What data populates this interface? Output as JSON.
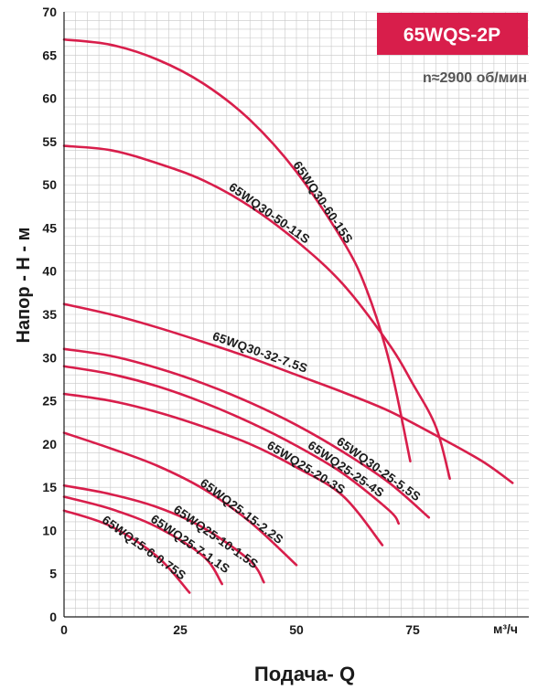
{
  "chart_data": {
    "type": "line",
    "title": "65WQS-2P",
    "subtitle": "n≈2900 об/мин",
    "xlabel": "Подача- Q",
    "xunit": "м³/ч",
    "ylabel": "Напор - Н - м",
    "xlim": [
      0,
      100
    ],
    "ylim": [
      0,
      70
    ],
    "x_ticks": [
      0,
      25,
      50,
      75
    ],
    "y_ticks": [
      0,
      5,
      10,
      15,
      20,
      25,
      30,
      35,
      40,
      45,
      50,
      55,
      60,
      65,
      70
    ],
    "grid": true,
    "colors": {
      "curve": "#d81e4b",
      "badge": "#d81e4b",
      "grid": "#c8c8c8"
    },
    "series": [
      {
        "name": "65WQ30-60-15S",
        "x": [
          0,
          10,
          20,
          30,
          40,
          50,
          60,
          65,
          70,
          74.5
        ],
        "y": [
          66.8,
          66.2,
          64.5,
          61.7,
          57.5,
          51.5,
          43.5,
          38,
          29.5,
          18
        ]
      },
      {
        "name": "65WQ30-50-11S",
        "x": [
          0,
          10,
          20,
          30,
          40,
          50,
          60,
          70,
          75,
          80,
          83
        ],
        "y": [
          54.5,
          54,
          52.5,
          50.5,
          47.5,
          43.5,
          38.5,
          31.5,
          27,
          22,
          16
        ]
      },
      {
        "name": "65WQ30-32-7.5S",
        "x": [
          0,
          10,
          20,
          30,
          40,
          50,
          60,
          70,
          80,
          90,
          96.5
        ],
        "y": [
          36.2,
          35,
          33.5,
          31.8,
          30,
          28,
          26,
          23.8,
          21,
          18,
          15.5
        ]
      },
      {
        "name": "65WQ30-25-5.5S",
        "x": [
          0,
          10,
          20,
          30,
          40,
          50,
          60,
          70,
          78.5
        ],
        "y": [
          31,
          30.2,
          28.8,
          27,
          24.8,
          22.2,
          19.1,
          15.5,
          11.5
        ]
      },
      {
        "name": "65WQ25-25-4S",
        "x": [
          0,
          10,
          20,
          30,
          40,
          50,
          60,
          70,
          72
        ],
        "y": [
          29,
          28.1,
          26.7,
          24.8,
          22.5,
          19.8,
          16.6,
          12.3,
          10.8
        ]
      },
      {
        "name": "65WQ25-20-3S",
        "x": [
          0,
          10,
          20,
          30,
          40,
          50,
          60,
          68.5
        ],
        "y": [
          25.8,
          25,
          23.7,
          22,
          20,
          17.3,
          14,
          8.3
        ]
      },
      {
        "name": "65WQ25-15-2.2S",
        "x": [
          0,
          10,
          20,
          30,
          40,
          50
        ],
        "y": [
          21.3,
          19.5,
          17.5,
          14.8,
          11,
          6
        ]
      },
      {
        "name": "65WQ25-10-1.5S",
        "x": [
          0,
          10,
          20,
          30,
          40,
          43
        ],
        "y": [
          15.2,
          14.2,
          12.7,
          10.3,
          6.5,
          4
        ]
      },
      {
        "name": "65WQ25-7-1.1S",
        "x": [
          0,
          10,
          20,
          30,
          34
        ],
        "y": [
          13.9,
          12.5,
          10.4,
          7,
          3.8
        ]
      },
      {
        "name": "65WQ15-6-0.75S",
        "x": [
          0,
          10,
          20,
          27
        ],
        "y": [
          12.3,
          10.5,
          7,
          2.8
        ]
      }
    ]
  }
}
